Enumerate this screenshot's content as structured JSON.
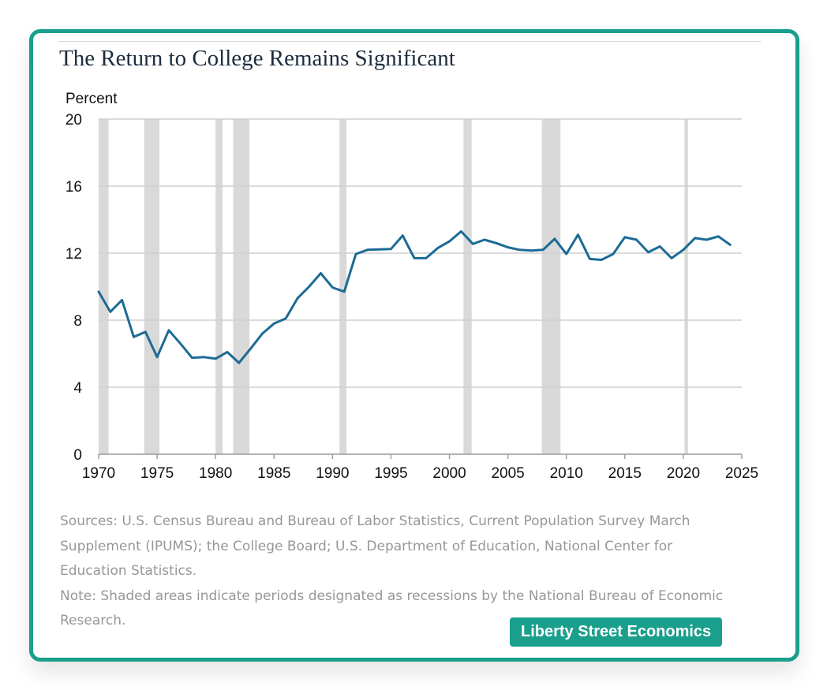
{
  "colors": {
    "border": "#1a9f8c",
    "line": "#1c6b94",
    "recession": "#d9d9d9",
    "grid": "#cfcfcf"
  },
  "chart_data": {
    "type": "line",
    "title": "The Return to College Remains Significant",
    "ylabel": "Percent",
    "xlabel": "",
    "xlim": [
      1970,
      2025
    ],
    "ylim": [
      0,
      20
    ],
    "x_ticks": [
      1970,
      1975,
      1980,
      1985,
      1990,
      1995,
      2000,
      2005,
      2010,
      2015,
      2020,
      2025
    ],
    "y_ticks": [
      0,
      4,
      8,
      12,
      16,
      20
    ],
    "grid": "horizontal",
    "legend": "none",
    "recessions": [
      [
        1970.0,
        1970.85
      ],
      [
        1973.9,
        1975.2
      ],
      [
        1980.0,
        1980.6
      ],
      [
        1981.5,
        1982.9
      ],
      [
        1990.6,
        1991.2
      ],
      [
        2001.2,
        2001.9
      ],
      [
        2007.9,
        2009.5
      ],
      [
        2020.1,
        2020.4
      ]
    ],
    "series": [
      {
        "x": [
          1970,
          1971,
          1972,
          1973,
          1974,
          1975,
          1976,
          1977,
          1978,
          1979,
          1980,
          1981,
          1982,
          1983,
          1984,
          1985,
          1986,
          1987,
          1988,
          1989,
          1990,
          1991,
          1992,
          1993,
          1994,
          1995,
          1996,
          1997,
          1998,
          1999,
          2000,
          2001,
          2002,
          2003,
          2004,
          2005,
          2006,
          2007,
          2008,
          2009,
          2010,
          2011,
          2012,
          2013,
          2014,
          2015,
          2016,
          2017,
          2018,
          2019,
          2020,
          2021,
          2022,
          2023,
          2024
        ],
        "y": [
          9.7,
          8.5,
          9.2,
          7.0,
          7.3,
          5.8,
          7.4,
          6.6,
          5.75,
          5.8,
          5.7,
          6.1,
          5.45,
          6.3,
          7.2,
          7.8,
          8.1,
          9.3,
          10.0,
          10.8,
          9.95,
          9.7,
          11.95,
          12.2,
          12.22,
          12.25,
          13.05,
          11.7,
          11.7,
          12.3,
          12.7,
          13.3,
          12.55,
          12.8,
          12.6,
          12.35,
          12.2,
          12.15,
          12.2,
          12.85,
          11.95,
          13.1,
          11.65,
          11.6,
          11.95,
          12.95,
          12.8,
          12.05,
          12.4,
          11.7,
          12.2,
          12.9,
          12.8,
          13.0,
          12.5
        ]
      }
    ]
  },
  "notes": {
    "sources": "Sources: U.S. Census Bureau and Bureau of Labor Statistics, Current Population Survey March Supplement (IPUMS); the College Board; U.S. Department of Education, National Center for Education Statistics.",
    "note": "Note: Shaded areas indicate periods designated as recessions by the National Bureau of Economic Research."
  },
  "brand": {
    "label": "Liberty Street Economics"
  }
}
